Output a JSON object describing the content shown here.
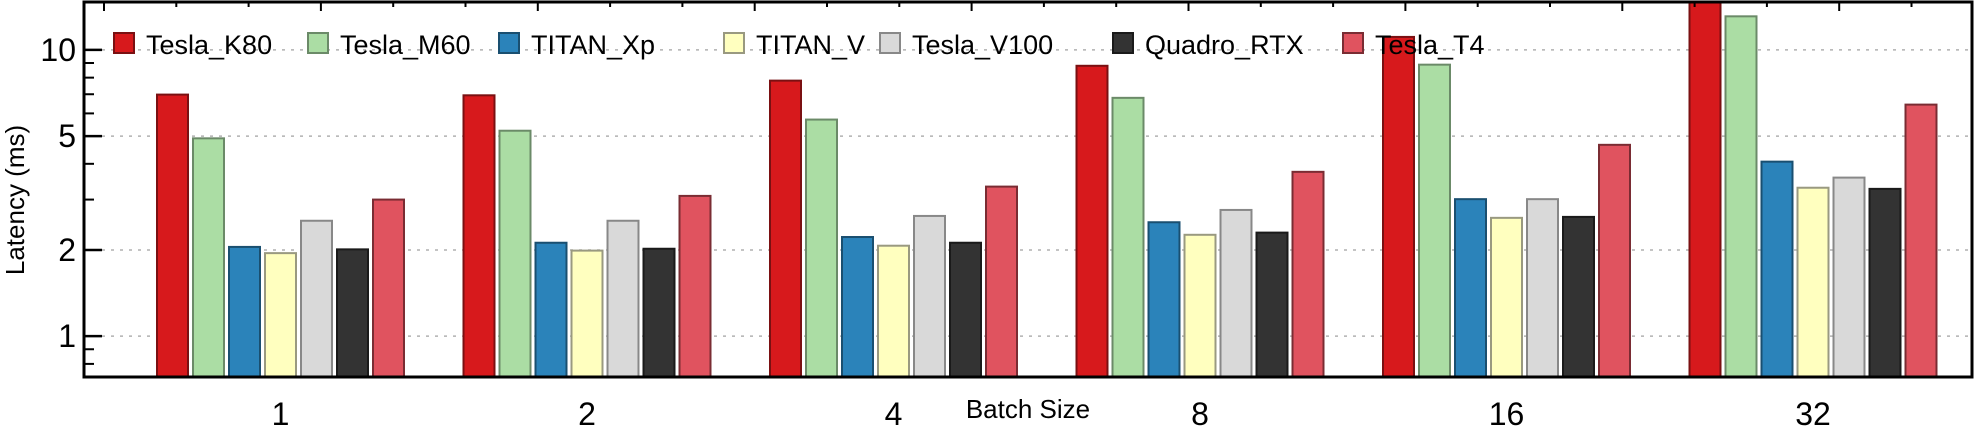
{
  "chart_data": {
    "type": "bar",
    "title": "",
    "xlabel": "Batch Size",
    "ylabel": "Latency (ms)",
    "yscale": "log",
    "ylim": [
      0.72,
      14.7
    ],
    "yticks": [
      1,
      2,
      5,
      10
    ],
    "ytick_labels": [
      "1",
      "2",
      "5",
      "10"
    ],
    "yminor_ticks": [
      0.8,
      0.9,
      3,
      4,
      6,
      7,
      8,
      9
    ],
    "grid": "horizontal dotted at major ticks",
    "legend_position": "top, single row",
    "categories": [
      "1",
      "2",
      "4",
      "8",
      "16",
      "32"
    ],
    "series": [
      {
        "name": "Tesla_K80",
        "color": "#d7191c",
        "edge": "#7a1012",
        "values": [
          6.98,
          6.94,
          7.81,
          8.8,
          11.1,
          15.0
        ]
      },
      {
        "name": "Tesla_M60",
        "color": "#abdda4",
        "edge": "#6b8a68",
        "values": [
          4.91,
          5.22,
          5.71,
          6.8,
          8.88,
          13.1
        ]
      },
      {
        "name": "TITAN_Xp",
        "color": "#2b83ba",
        "edge": "#1a4f70",
        "values": [
          2.05,
          2.12,
          2.22,
          2.5,
          3.01,
          4.07
        ]
      },
      {
        "name": "TITAN_V",
        "color": "#ffffbf",
        "edge": "#999980",
        "values": [
          1.95,
          1.99,
          2.07,
          2.26,
          2.59,
          3.3
        ]
      },
      {
        "name": "Tesla_V100",
        "color": "#d9d9d9",
        "edge": "#888888",
        "values": [
          2.53,
          2.53,
          2.63,
          2.76,
          3.01,
          3.58
        ]
      },
      {
        "name": "Quadro_RTX",
        "color": "#333333",
        "edge": "#1a1a1a",
        "values": [
          2.01,
          2.02,
          2.12,
          2.3,
          2.61,
          3.27
        ]
      },
      {
        "name": "Tesla_T4",
        "color": "#e0535f",
        "edge": "#7a2c33",
        "values": [
          3.0,
          3.09,
          3.33,
          3.75,
          4.66,
          6.44
        ]
      }
    ]
  }
}
